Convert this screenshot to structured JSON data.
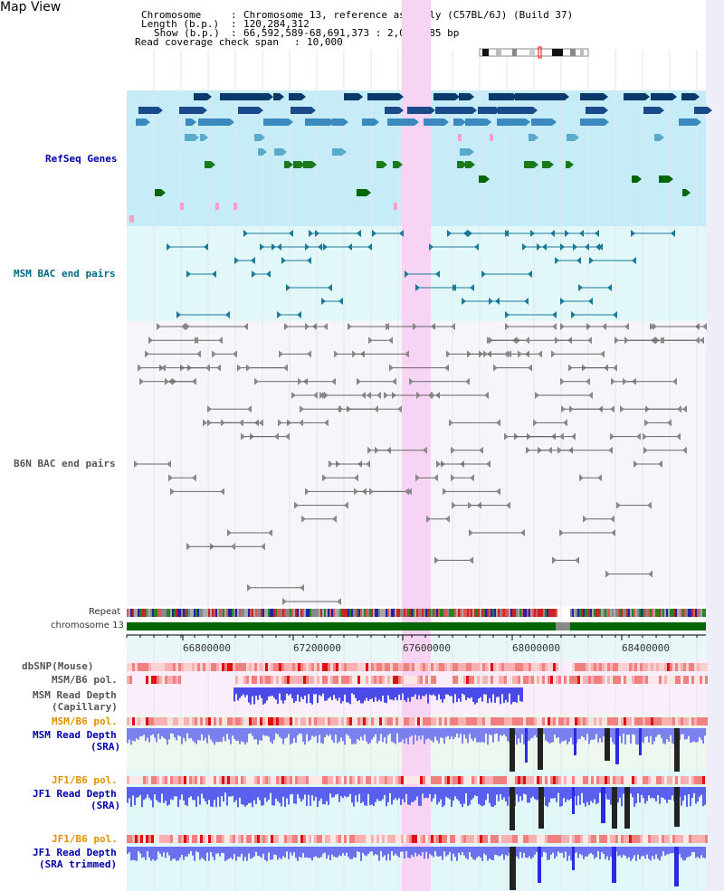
{
  "view_title": "Map View",
  "info": {
    "chromosome_key": "Chromosome",
    "chromosome_val": "Chromosome 13, reference assembly (C57BL/6J) (Build 37)",
    "length_key": "Length (b.p.)",
    "length_val": "120,284,312",
    "show_key": "Show (b.p.)",
    "show_val": "66,592,589-68,691,373 : 2,098,785 bp",
    "span_key": "Read coverage check span",
    "span_val": "10,000"
  },
  "tracks": {
    "refseq": "RefSeq Genes",
    "msm_bac": "MSM BAC end pairs",
    "b6n_bac": "B6N BAC end pairs",
    "repeat": "Repeat",
    "chromosome": "chromosome 13",
    "dbsnp": "dbSNP(Mouse)",
    "msm_b6_pol_1": "MSM/B6 pol.",
    "msm_depth_cap_1": "MSM Read Depth",
    "msm_depth_cap_2": "(Capillary)",
    "msm_b6_pol_2": "MSM/B6 pol.",
    "msm_depth_sra_1": "MSM Read Depth",
    "msm_depth_sra_2": "(SRA)",
    "jf1_b6_pol_1": "JF1/B6 pol.",
    "jf1_depth_sra_1": "JF1 Read Depth",
    "jf1_depth_sra_2": "(SRA)",
    "jf1_b6_pol_2": "JF1/B6 pol.",
    "jf1_depth_trim_1": "JF1 Read Depth",
    "jf1_depth_trim_2": "(SRA trimmed)"
  },
  "axis": {
    "ticks": [
      "66800000",
      "67200000",
      "67600000",
      "68000000",
      "68400000"
    ]
  },
  "colors": {
    "refseq_bg": "#c6ecf8",
    "msm_bg": "#e2f8f8",
    "b6n_bg": "#f6f6fa",
    "highlight": "#f8d4f4",
    "chrom_green": "#006600",
    "depth_blue": "#2233ee"
  }
}
